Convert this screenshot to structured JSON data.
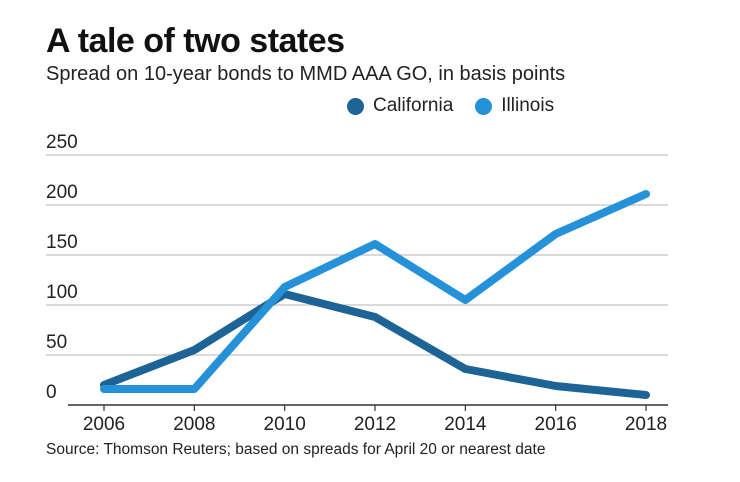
{
  "title": "A tale of two states",
  "subtitle": "Spread on 10-year bonds to MMD AAA GO, in basis points",
  "source": "Source: Thomson Reuters; based on spreads for April 20 or nearest date",
  "legend": [
    {
      "name": "California",
      "color": "#1d6396"
    },
    {
      "name": "Illinois",
      "color": "#2491d8"
    }
  ],
  "chart_data": {
    "type": "line",
    "title": "A tale of two states",
    "subtitle": "Spread on 10-year bonds to MMD AAA GO, in basis points",
    "x": [
      2006,
      2008,
      2010,
      2012,
      2014,
      2016,
      2018
    ],
    "x_tick_labels": [
      "2006",
      "2008",
      "2010",
      "2012",
      "2014",
      "2016",
      "2018"
    ],
    "y_ticks": [
      0,
      50,
      100,
      150,
      200,
      250
    ],
    "y_tick_labels": [
      "0",
      "50",
      "100",
      "150",
      "200",
      "250"
    ],
    "ylim": [
      0,
      250
    ],
    "grid": true,
    "legend_position": "top",
    "series": [
      {
        "name": "California",
        "color": "#1d6396",
        "values": [
          20,
          55,
          111,
          88,
          36,
          19,
          10
        ]
      },
      {
        "name": "Illinois",
        "color": "#2491d8",
        "values": [
          16,
          16,
          118,
          161,
          105,
          171,
          211
        ]
      }
    ],
    "xlabel": "",
    "ylabel": ""
  }
}
